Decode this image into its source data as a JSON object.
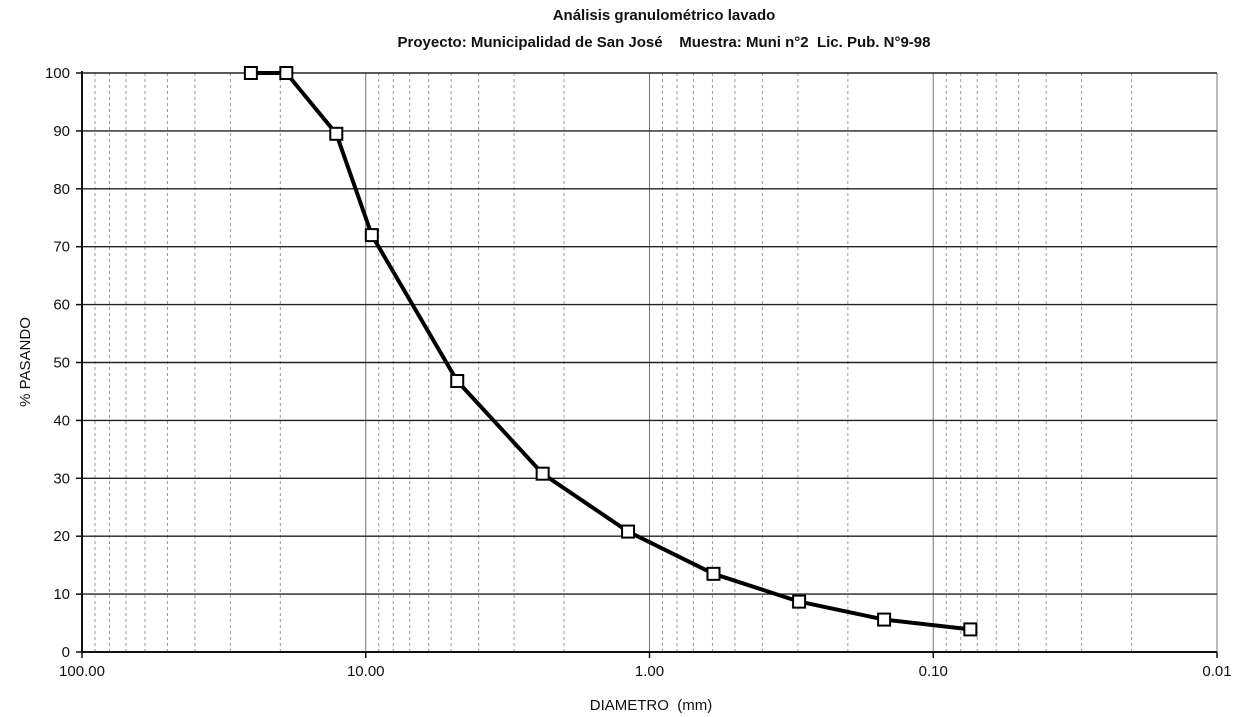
{
  "chart_data": {
    "type": "line",
    "title": "Análisis granulométrico lavado",
    "subtitle": "Proyecto: Municipalidad de San José    Muestra: Muni n°2  Lic. Pub. N°9-98",
    "xlabel": "DIAMETRO  (mm)",
    "ylabel": "% PASANDO",
    "x_scale": "log",
    "x_reversed": true,
    "xlim": [
      100,
      0.01
    ],
    "ylim": [
      0,
      100
    ],
    "x_ticks": [
      100,
      10,
      1,
      0.1,
      0.01
    ],
    "x_tick_labels": [
      "100.00",
      "10.00",
      "1.00",
      "0.10",
      "0.01"
    ],
    "y_ticks": [
      0,
      10,
      20,
      30,
      40,
      50,
      60,
      70,
      80,
      90,
      100
    ],
    "y_tick_labels": [
      "0",
      "10",
      "20",
      "30",
      "40",
      "50",
      "60",
      "70",
      "80",
      "90",
      "100"
    ],
    "grid": true,
    "marker": "square",
    "series": [
      {
        "x": [
          25.4,
          19.05,
          12.7,
          9.52,
          4.76,
          2.38,
          1.19,
          0.595,
          0.297,
          0.149,
          0.074
        ],
        "y": [
          100,
          100,
          89.5,
          72,
          46.8,
          30.8,
          20.8,
          13.5,
          8.7,
          5.6,
          3.9
        ]
      }
    ]
  }
}
